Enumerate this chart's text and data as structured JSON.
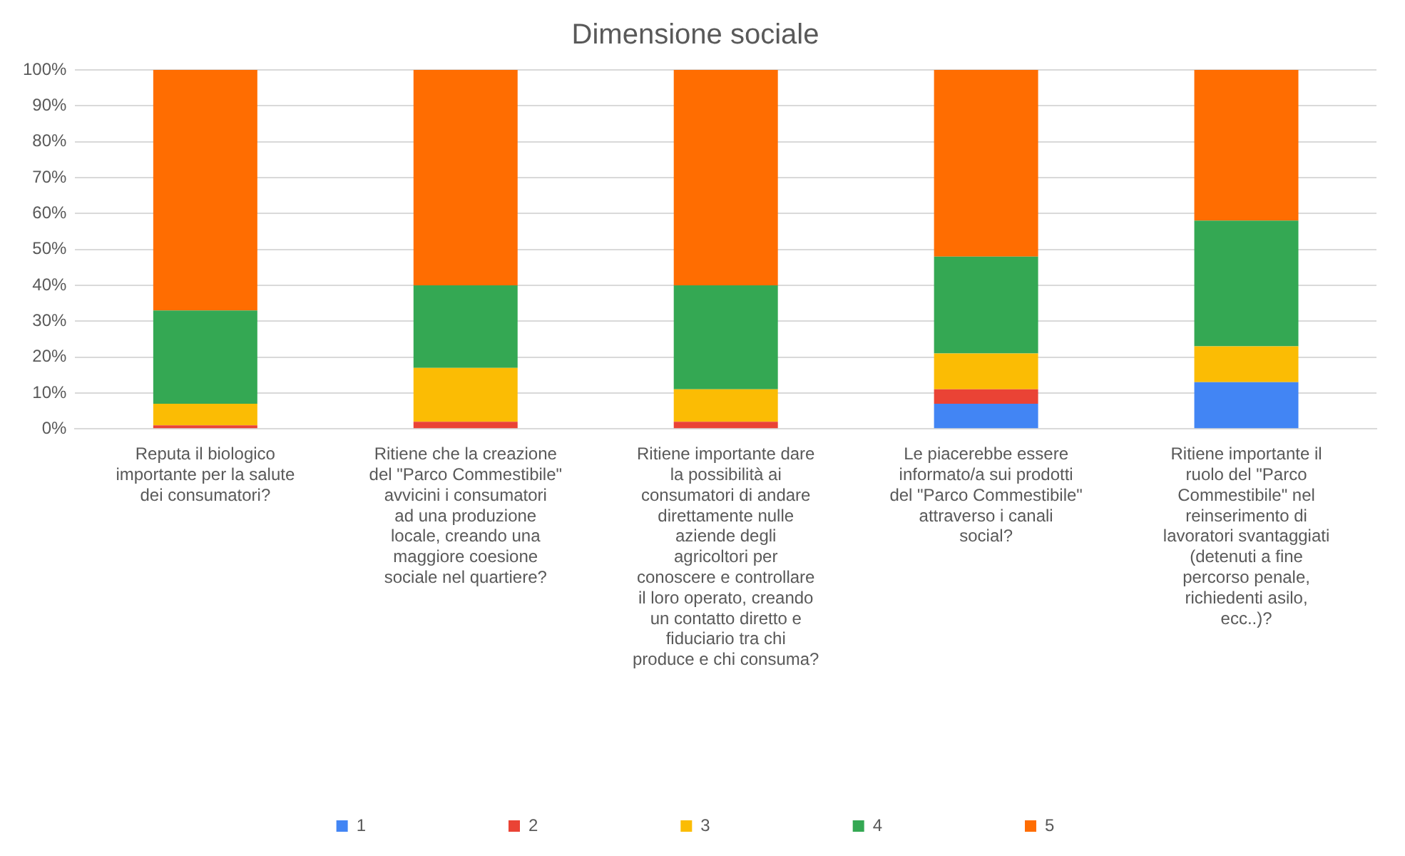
{
  "chart_data": {
    "type": "bar",
    "title": "Dimensione sociale",
    "stacked": true,
    "categories": [
      "Reputa il biologico importante per la salute dei consumatori?",
      "Ritiene che la creazione del \"Parco Commestibile\" avvicini i consumatori ad una produzione locale, creando una maggiore coesione sociale nel quartiere?",
      "Ritiene importante dare la possibilità ai consumatori di andare direttamente nulle aziende degli agricoltori per conoscere e controllare il loro operato, creando un contatto diretto e fiduciario tra chi produce e chi consuma?",
      "Le piacerebbe essere informato/a sui prodotti del \"Parco Commestibile\" attraverso i canali social?",
      "Ritiene importante il ruolo del \"Parco Commestibile\" nel reinserimento di lavoratori svantaggiati (detenuti a fine percorso penale, richiedenti asilo, ecc..)?"
    ],
    "series": [
      {
        "name": "1",
        "color": "#4285f4",
        "values": [
          0,
          0,
          0,
          7,
          13
        ]
      },
      {
        "name": "2",
        "color": "#ea4335",
        "values": [
          1,
          2,
          2,
          4,
          0
        ]
      },
      {
        "name": "3",
        "color": "#fbbc04",
        "values": [
          6,
          15,
          9,
          10,
          10
        ]
      },
      {
        "name": "4",
        "color": "#34a853",
        "values": [
          26,
          23,
          29,
          27,
          35
        ]
      },
      {
        "name": "5",
        "color": "#ff6d01",
        "values": [
          67,
          60,
          60,
          52,
          42
        ]
      }
    ],
    "ylim": [
      0,
      100
    ],
    "yticks": [
      {
        "value": 0,
        "label": "0%"
      },
      {
        "value": 10,
        "label": "10%"
      },
      {
        "value": 20,
        "label": "20%"
      },
      {
        "value": 30,
        "label": "30%"
      },
      {
        "value": 40,
        "label": "40%"
      },
      {
        "value": 50,
        "label": "50%"
      },
      {
        "value": 60,
        "label": "60%"
      },
      {
        "value": 70,
        "label": "70%"
      },
      {
        "value": 80,
        "label": "80%"
      },
      {
        "value": 90,
        "label": "90%"
      },
      {
        "value": 100,
        "label": "100%"
      }
    ],
    "grid": "y",
    "legend": "bottom"
  }
}
